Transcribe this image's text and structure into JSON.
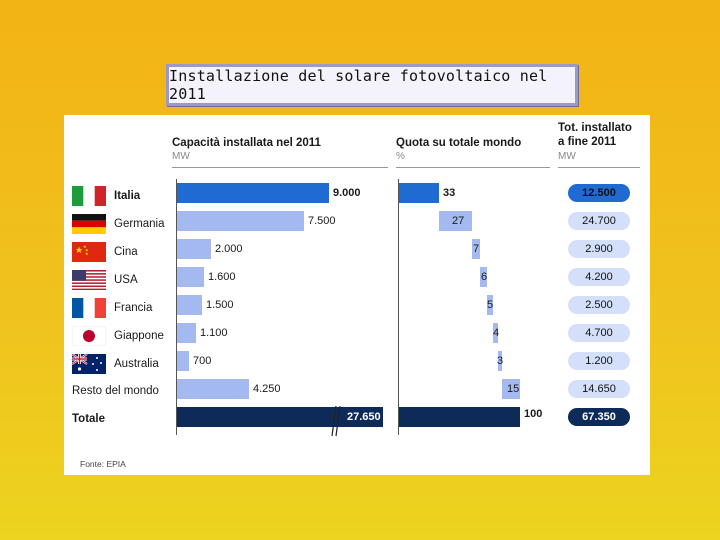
{
  "slide_title": "Installazione del solare fotovoltaico nel 2011",
  "headers": {
    "capacity_title": "Capacità installata nel 2011",
    "capacity_unit": "MW",
    "share_title": "Quota su totale mondo",
    "share_unit": "%",
    "total_title_line1": "Tot. installato",
    "total_title_line2": "a fine 2011",
    "total_unit": "MW"
  },
  "source": "Fonte: EPIA",
  "chart_data": {
    "type": "bar",
    "title": "Installazione del solare fotovoltaico nel 2011",
    "categories": [
      "Italia",
      "Germania",
      "Cina",
      "USA",
      "Francia",
      "Giappone",
      "Australia",
      "Resto del mondo",
      "Totale"
    ],
    "series": [
      {
        "name": "Capacità installata nel 2011 (MW)",
        "values": [
          9000,
          7500,
          2000,
          1600,
          1500,
          1100,
          700,
          4250,
          27650
        ],
        "labels": [
          "9.000",
          "7.500",
          "2.000",
          "1.600",
          "1.500",
          "1.100",
          "700",
          "4.250",
          "27.650"
        ]
      },
      {
        "name": "Quota su totale mondo (%)",
        "values": [
          33,
          27,
          7,
          6,
          5,
          4,
          3,
          15,
          100
        ],
        "labels": [
          "33",
          "27",
          "7",
          "6",
          "5",
          "4",
          "3",
          "15",
          "100"
        ]
      },
      {
        "name": "Tot. installato a fine 2011 (MW)",
        "values": [
          12500,
          24700,
          2900,
          4200,
          2500,
          4700,
          1200,
          14650,
          67350
        ],
        "labels": [
          "12.500",
          "24.700",
          "2.900",
          "4.200",
          "2.500",
          "4.700",
          "1.200",
          "14.650",
          "67.350"
        ]
      }
    ],
    "xlim_capacity": [
      0,
      9000
    ],
    "xlim_share": [
      0,
      100
    ],
    "notes": "Totale capacity bar is drawn with an axis break"
  },
  "colors": {
    "highlight": "#1f6bd2",
    "bar": "#a4b9ef",
    "total": "#0d2a59",
    "pill": "#d4dffa"
  }
}
